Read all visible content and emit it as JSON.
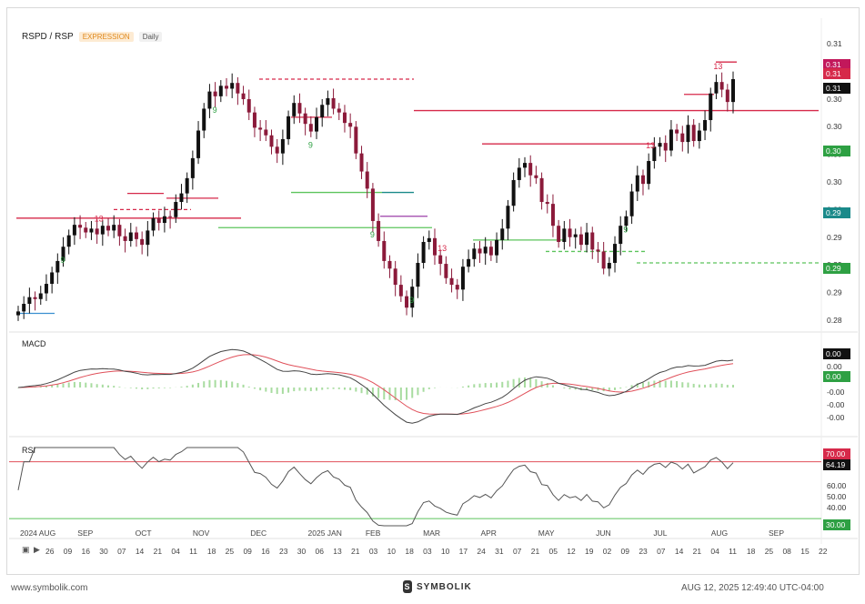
{
  "header": {
    "symbol": "RSPD / RSP",
    "tag_expression": "EXPRESSION",
    "tag_interval": "Daily"
  },
  "colors": {
    "up": "#111111",
    "down": "#8b1a3a",
    "macd_line": "#444444",
    "signal_line": "#e0505a",
    "histogram": "#a8dca0",
    "rsi_line": "#555555",
    "overbought": "#e0505a",
    "oversold": "#5cc45c",
    "td_green": "#2ea043",
    "td_red": "#d6294a"
  },
  "panels": {
    "macd_label": "MACD",
    "rsi_label": "RSI"
  },
  "price_axis": {
    "ticks": [
      "0.31",
      "0.31",
      "0.30",
      "0.30",
      "0.30",
      "0.30",
      "0.29",
      "0.29",
      "0.29",
      "0.29",
      "0.28"
    ]
  },
  "price_badges": [
    {
      "text": "0.31",
      "bg": "#c2185b",
      "fg": "#ffffff"
    },
    {
      "text": "0.31",
      "bg": "#d6294a",
      "fg": "#ffffff"
    },
    {
      "text": "0.31",
      "bg": "#111111",
      "fg": "#ffffff"
    },
    {
      "text": "0.30",
      "bg": "#2ea043",
      "fg": "#ffffff"
    },
    {
      "text": "0.29",
      "bg": "#1a8a8a",
      "fg": "#ffffff"
    },
    {
      "text": "0.29",
      "bg": "#2ea043",
      "fg": "#ffffff"
    }
  ],
  "macd_axis": {
    "ticks": [
      "0.00",
      "0.00",
      "-0.00",
      "-0.00",
      "-0.00"
    ]
  },
  "macd_badges": [
    {
      "text": "0.00",
      "bg": "#111111",
      "fg": "#ffffff"
    },
    {
      "text": "0.00",
      "bg": "#2ea043",
      "fg": "#ffffff"
    }
  ],
  "rsi_axis": {
    "ticks": [
      "60.00",
      "50.00",
      "40.00"
    ]
  },
  "rsi_badges": [
    {
      "text": "70.00",
      "bg": "#d6294a",
      "fg": "#ffffff"
    },
    {
      "text": "64.19",
      "bg": "#111111",
      "fg": "#ffffff"
    },
    {
      "text": "30.00",
      "bg": "#2ea043",
      "fg": "#ffffff"
    }
  ],
  "month_labels": [
    "2024 AUG",
    "SEP",
    "OCT",
    "NOV",
    "DEC",
    "2025 JAN",
    "FEB",
    "MAR",
    "APR",
    "MAY",
    "JUN",
    "JUL",
    "AUG",
    "SEP"
  ],
  "day_labels": [
    "26",
    "09",
    "16",
    "30",
    "07",
    "14",
    "21",
    "04",
    "11",
    "18",
    "25",
    "09",
    "16",
    "23",
    "30",
    "06",
    "13",
    "21",
    "03",
    "10",
    "18",
    "03",
    "10",
    "17",
    "24",
    "31",
    "07",
    "21",
    "05",
    "12",
    "19",
    "02",
    "09",
    "23",
    "07",
    "14",
    "21",
    "04",
    "11",
    "18",
    "25",
    "08",
    "15",
    "22"
  ],
  "footer": {
    "url": "www.symbolik.com",
    "brand": "SYMBOLIK",
    "timestamp": "AUG 12, 2025 12:49:40 UTC-04:00"
  },
  "chart_data": [
    {
      "type": "candlestick",
      "title": "RSPD / RSP",
      "ylim": [
        0.2835,
        0.3135
      ],
      "series": [
        {
          "name": "RSPD / RSP",
          "close": [
            0.2848,
            0.2856,
            0.2863,
            0.2861,
            0.2867,
            0.2877,
            0.2889,
            0.2901,
            0.2916,
            0.2928,
            0.2939,
            0.2936,
            0.2931,
            0.2935,
            0.2929,
            0.2938,
            0.2933,
            0.2939,
            0.2927,
            0.2922,
            0.2931,
            0.2924,
            0.2918,
            0.2933,
            0.2946,
            0.2941,
            0.2948,
            0.2947,
            0.2963,
            0.2972,
            0.2988,
            0.3009,
            0.3038,
            0.3061,
            0.3079,
            0.3074,
            0.3085,
            0.3082,
            0.3088,
            0.3077,
            0.3071,
            0.3057,
            0.3041,
            0.3039,
            0.3033,
            0.3021,
            0.3014,
            0.3029,
            0.3053,
            0.3067,
            0.3056,
            0.3045,
            0.3037,
            0.3052,
            0.3065,
            0.3072,
            0.3061,
            0.3057,
            0.3046,
            0.3042,
            0.3014,
            0.2995,
            0.2977,
            0.2943,
            0.2922,
            0.2901,
            0.2893,
            0.2876,
            0.2864,
            0.2852,
            0.2874,
            0.2899,
            0.2921,
            0.2925,
            0.2907,
            0.2898,
            0.2883,
            0.2876,
            0.2871,
            0.2895,
            0.2903,
            0.2914,
            0.2909,
            0.2916,
            0.2907,
            0.2923,
            0.2935,
            0.2959,
            0.2986,
            0.2999,
            0.3004,
            0.2991,
            0.2988,
            0.2963,
            0.2961,
            0.2938,
            0.2921,
            0.2935,
            0.2926,
            0.2929,
            0.2918,
            0.2931,
            0.2913,
            0.2911,
            0.2893,
            0.2899,
            0.2919,
            0.2938,
            0.2948,
            0.2974,
            0.2991,
            0.2982,
            0.3006,
            0.3021,
            0.3025,
            0.3017,
            0.3039,
            0.3035,
            0.3026,
            0.3044,
            0.3027,
            0.3038,
            0.3049,
            0.3077,
            0.3089,
            0.3081,
            0.3068,
            0.3092
          ]
        }
      ],
      "annotations": [
        "9",
        "9",
        "13",
        "9",
        "9",
        "13",
        "9",
        "13",
        "9",
        "13"
      ]
    },
    {
      "type": "line",
      "title": "MACD",
      "ylim": [
        -1,
        1
      ],
      "series": [
        {
          "name": "MACD"
        },
        {
          "name": "Signal"
        },
        {
          "name": "Histogram"
        }
      ]
    },
    {
      "type": "line",
      "title": "RSI",
      "ylim": [
        25,
        80
      ],
      "series": [
        {
          "name": "RSI",
          "last": 64.19
        }
      ],
      "levels": [
        70,
        30
      ]
    }
  ]
}
